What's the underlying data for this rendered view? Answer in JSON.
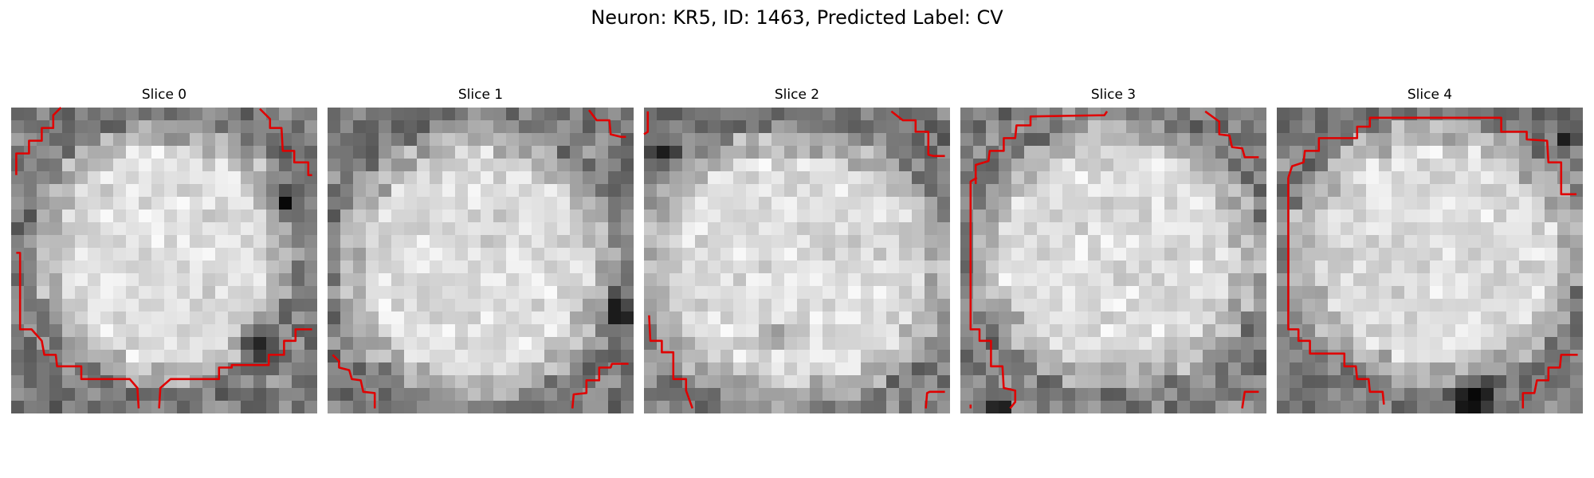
{
  "figure": {
    "title": "Neuron: KR5, ID: 1463, Predicted Label: CV"
  },
  "contour_color": "#e00000",
  "colormap": "gray",
  "grid_size": 24,
  "slices": [
    {
      "label": "Slice 0"
    },
    {
      "label": "Slice 1"
    },
    {
      "label": "Slice 2"
    },
    {
      "label": "Slice 3"
    },
    {
      "label": "Slice 4"
    }
  ]
}
